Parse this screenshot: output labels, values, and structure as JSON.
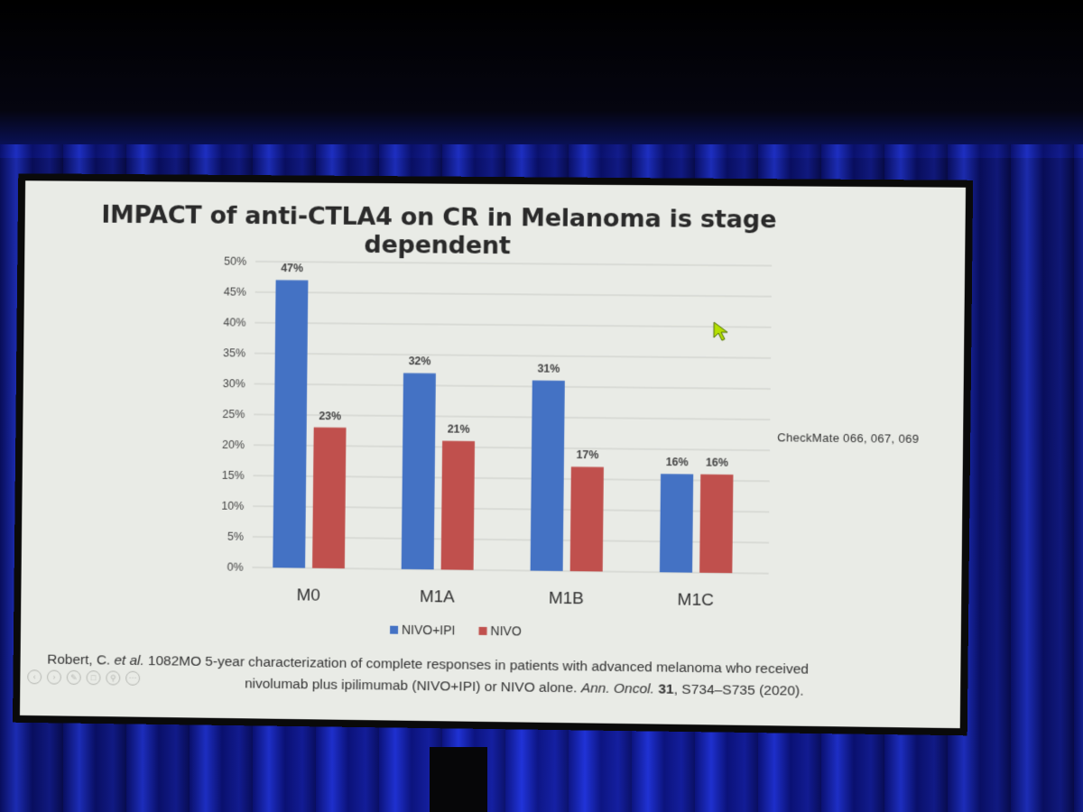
{
  "slide": {
    "title": "IMPACT of anti-CTLA4 on CR in Melanoma is stage dependent",
    "source_note": "CheckMate 066, 067, 069",
    "citation_line1_parts": [
      {
        "text": "Robert, C. ",
        "style": "normal"
      },
      {
        "text": "et al.",
        "style": "italic"
      },
      {
        "text": " 1082MO 5-year characterization of complete responses in patients with advanced melanoma who received",
        "style": "normal"
      }
    ],
    "citation_line2_parts": [
      {
        "text": "nivolumab plus ipilimumab (NIVO+IPI) or NIVO alone. ",
        "style": "normal"
      },
      {
        "text": "Ann. Oncol.",
        "style": "italic"
      },
      {
        "text": " ",
        "style": "normal"
      },
      {
        "text": "31",
        "style": "bold"
      },
      {
        "text": ", S734–S735 (2020).",
        "style": "normal"
      }
    ]
  },
  "chart_data": {
    "type": "bar",
    "title": "IMPACT of anti-CTLA4 on CR in Melanoma is stage dependent",
    "categories": [
      "M0",
      "M1A",
      "M1B",
      "M1C"
    ],
    "series": [
      {
        "name": "NIVO+IPI",
        "color": "#4472c4",
        "values": [
          47,
          32,
          31,
          16
        ],
        "labels": [
          "47%",
          "32%",
          "31%",
          "16%"
        ]
      },
      {
        "name": "NIVO",
        "color": "#c0504d",
        "values": [
          23,
          21,
          17,
          16
        ],
        "labels": [
          "23%",
          "21%",
          "17%",
          "16%"
        ]
      }
    ],
    "ylim": [
      0,
      50
    ],
    "yticks": [
      "0%",
      "5%",
      "10%",
      "15%",
      "20%",
      "25%",
      "30%",
      "35%",
      "40%",
      "45%",
      "50%"
    ],
    "ytick_values": [
      0,
      5,
      10,
      15,
      20,
      25,
      30,
      35,
      40,
      45,
      50
    ],
    "xlabel": "",
    "ylabel": "",
    "grid": true,
    "legend": "bottom"
  },
  "nav_icons": [
    "prev-icon",
    "next-icon",
    "pen-icon",
    "slides-icon",
    "zoom-icon",
    "more-icon"
  ]
}
